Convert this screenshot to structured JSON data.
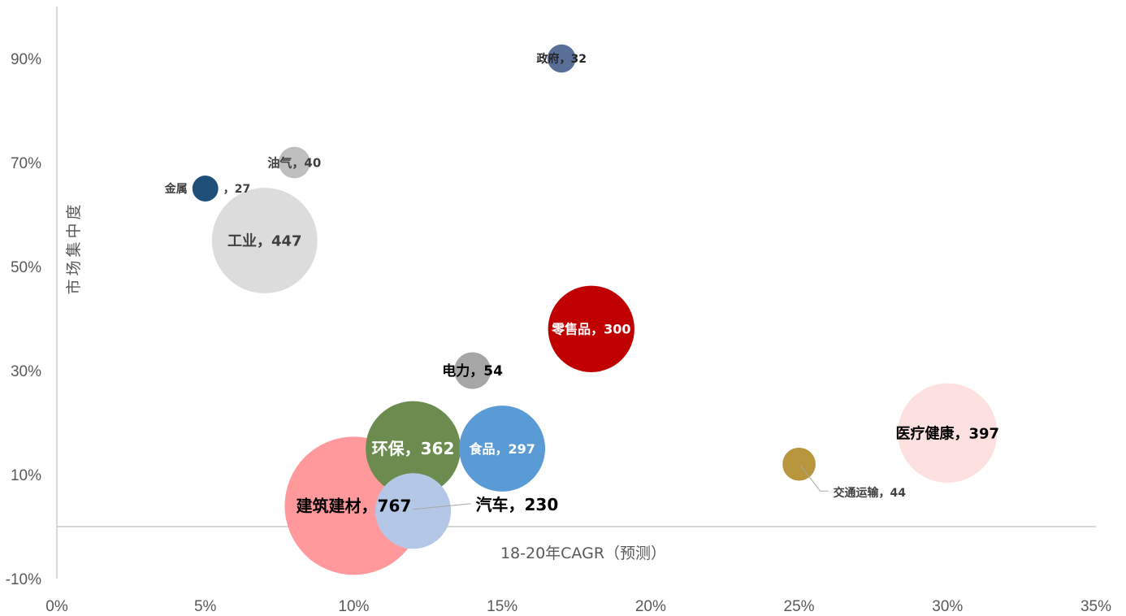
{
  "chart_data": {
    "type": "scatter",
    "variant": "bubble",
    "xlabel": "18-20年CAGR（预测）",
    "ylabel": "市场集中度",
    "xlim": [
      0,
      0.35
    ],
    "ylim": [
      -0.1,
      1.0
    ],
    "xticks": [
      "0%",
      "5%",
      "10%",
      "15%",
      "20%",
      "25%",
      "30%",
      "35%"
    ],
    "yticks": [
      "-10%",
      "10%",
      "30%",
      "50%",
      "70%",
      "90%"
    ],
    "grid": false,
    "legend": "none",
    "points": [
      {
        "label": "建筑建材，767",
        "x": 0.1,
        "y": 0.04,
        "size": 767,
        "color": "#ff999b",
        "label_color": "#000000",
        "label_size": 20
      },
      {
        "label": "工业，447",
        "x": 0.07,
        "y": 0.55,
        "size": 447,
        "color": "#dcdcdc",
        "label_color": "#404040",
        "label_size": 18
      },
      {
        "label": "医疗健康，397",
        "x": 0.3,
        "y": 0.18,
        "size": 397,
        "color": "#fde0e0",
        "label_color": "#000000",
        "label_size": 18
      },
      {
        "label": "环保，362",
        "x": 0.12,
        "y": 0.15,
        "size": 362,
        "color": "#6b8c4e",
        "label_color": "#ffffff",
        "label_size": 20
      },
      {
        "label": "零售品，300",
        "x": 0.18,
        "y": 0.38,
        "size": 300,
        "color": "#c00000",
        "label_color": "#ffffff",
        "label_size": 16
      },
      {
        "label": "食品，297",
        "x": 0.15,
        "y": 0.15,
        "size": 297,
        "color": "#5b9bd5",
        "label_color": "#ffffff",
        "label_size": 16
      },
      {
        "label": "汽车，230",
        "x": 0.12,
        "y": 0.03,
        "size": 230,
        "color": "#b4c7e7",
        "label_color": "#000000",
        "label_size": 20,
        "label_offset": "right",
        "leader": true
      },
      {
        "label": "电力，54",
        "x": 0.14,
        "y": 0.3,
        "size": 54,
        "color": "#a6a6a6",
        "label_color": "#000000",
        "label_size": 17
      },
      {
        "label": "交通运输，44",
        "x": 0.25,
        "y": 0.12,
        "size": 44,
        "color": "#b8963e",
        "label_color": "#404040",
        "label_size": 14,
        "label_offset": "below-right",
        "leader": true
      },
      {
        "label": "油气，40",
        "x": 0.08,
        "y": 0.7,
        "size": 40,
        "color": "#bfbfbf",
        "label_color": "#404040",
        "label_size": 15
      },
      {
        "label": "政府，32",
        "x": 0.17,
        "y": 0.9,
        "size": 32,
        "color": "#5a6f97",
        "label_color": "#262626",
        "label_size": 14
      },
      {
        "label": "金属",
        "x": 0.05,
        "y": 0.65,
        "size": 27,
        "color": "#1f4e79",
        "label_color": "#404040",
        "label_size": 14,
        "label_offset": "left-split"
      },
      {
        "label": "，27",
        "x": 0.05,
        "y": 0.65,
        "size": 27,
        "color": "#1f4e79",
        "label_color": "#404040",
        "label_size": 14,
        "label_offset": "right-split",
        "label_only": true
      }
    ]
  }
}
